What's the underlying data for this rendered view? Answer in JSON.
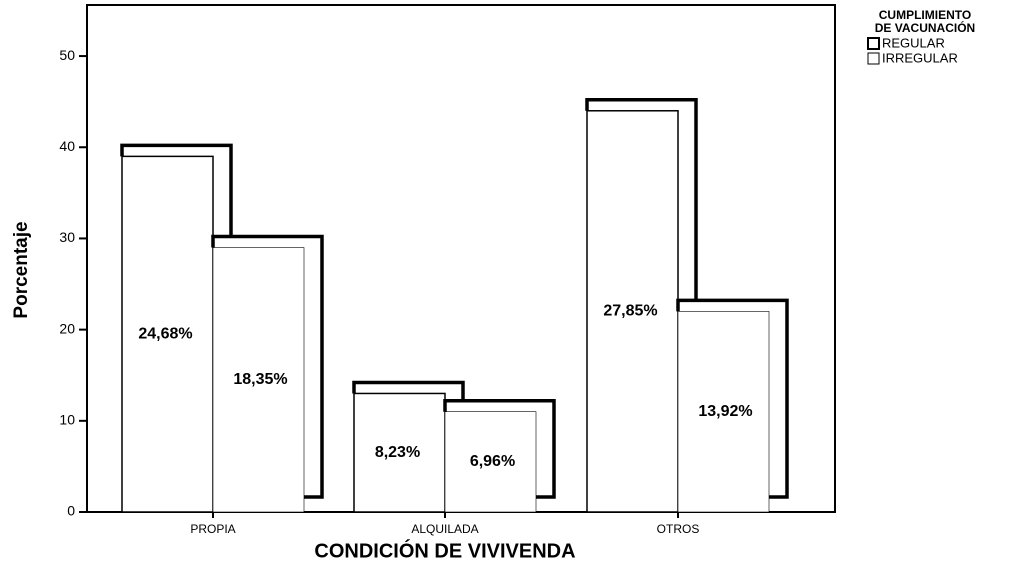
{
  "chart_data": {
    "type": "bar",
    "y_label": "Porcentaje",
    "x_label": "CONDICIÓN DE VIVIVENDA",
    "legend_title": [
      "CUMPLIMIENTO",
      "DE VACUNACIÓN"
    ],
    "categories": [
      "PROPIA",
      "ALQUILADA",
      "OTROS"
    ],
    "series": [
      {
        "name": "REGULAR",
        "color": "#ffffff",
        "values": [
          39,
          13,
          44
        ],
        "annotations": [
          "24,68%",
          "8,23%",
          "27,85%"
        ]
      },
      {
        "name": "IRREGULAR",
        "color": "#ffffff",
        "values": [
          29,
          11,
          22
        ],
        "annotations": [
          "18,35%",
          "6,96%",
          "13,92%"
        ]
      }
    ],
    "ylim": [
      0,
      55.6
    ],
    "yticks": [
      0,
      10,
      20,
      30,
      40,
      50
    ]
  }
}
